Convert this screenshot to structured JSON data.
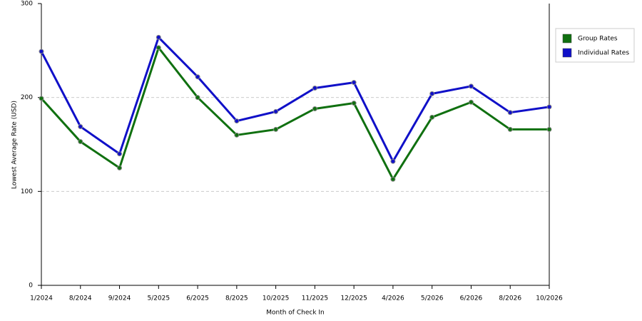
{
  "chart_data": {
    "type": "line",
    "x_label": "Month of Check In",
    "y_label": "Lowest Average Rate (USD)",
    "categories": [
      "1/2024",
      "8/2024",
      "9/2024",
      "5/2025",
      "6/2025",
      "8/2025",
      "10/2025",
      "11/2025",
      "12/2025",
      "4/2026",
      "5/2026",
      "6/2026",
      "8/2026",
      "10/2026"
    ],
    "series": [
      {
        "name": "Group Rates",
        "color": "#107010",
        "values": [
          199,
          153,
          125,
          253,
          200,
          160,
          166,
          188,
          194,
          113,
          179,
          195,
          166,
          166
        ]
      },
      {
        "name": "Individual Rates",
        "color": "#1010c8",
        "values": [
          249,
          169,
          140,
          264,
          222,
          175,
          185,
          210,
          216,
          132,
          204,
          212,
          184,
          190
        ]
      }
    ],
    "ylim": [
      0,
      300
    ],
    "yticks": [
      0,
      100,
      200,
      300
    ],
    "grid": true,
    "legend": "right"
  }
}
